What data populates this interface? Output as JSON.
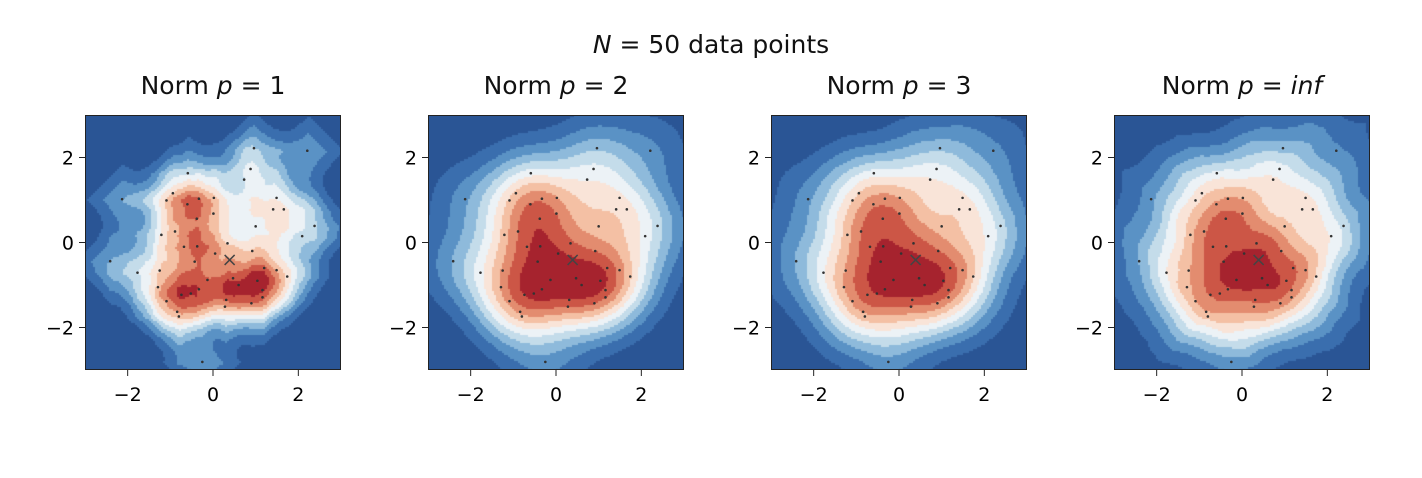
{
  "chart_data": {
    "type": "contour",
    "suptitle": {
      "var": "N",
      "eq": " = 50 data points"
    },
    "colormap": [
      "#2a5595",
      "#3a6eae",
      "#5a92c5",
      "#8ebadb",
      "#c4dcea",
      "#ecf2f6",
      "#f9e4d8",
      "#f4c0a4",
      "#e38c6f",
      "#cc5646",
      "#a6232e"
    ],
    "xlim": [
      -3,
      3
    ],
    "ylim": [
      -3,
      3
    ],
    "xticks": [
      -2,
      0,
      2
    ],
    "yticks": [
      -2,
      0,
      2
    ],
    "xtick_labels": [
      "−2",
      "0",
      "2"
    ],
    "ytick_labels": [
      "2",
      "0",
      "−2"
    ],
    "center_marker": [
      0.39,
      -0.41
    ],
    "points": [
      [
        0.96,
        2.22
      ],
      [
        2.21,
        2.16
      ],
      [
        0.88,
        1.73
      ],
      [
        -0.59,
        1.63
      ],
      [
        0.73,
        1.48
      ],
      [
        -2.13,
        1.02
      ],
      [
        -0.94,
        1.16
      ],
      [
        -1.09,
        0.99
      ],
      [
        -0.33,
        1.03
      ],
      [
        0.02,
        1.05
      ],
      [
        1.49,
        1.05
      ],
      [
        1.41,
        0.78
      ],
      [
        1.66,
        0.78
      ],
      [
        0.01,
        0.68
      ],
      [
        -0.38,
        0.56
      ],
      [
        1.0,
        0.38
      ],
      [
        2.38,
        0.39
      ],
      [
        -1.21,
        0.18
      ],
      [
        -0.89,
        0.26
      ],
      [
        2.09,
        0.15
      ],
      [
        -0.68,
        -0.1
      ],
      [
        -0.37,
        -0.09
      ],
      [
        0.05,
        -0.26
      ],
      [
        0.34,
        -0.02
      ],
      [
        0.92,
        -0.2
      ],
      [
        -2.41,
        -0.44
      ],
      [
        -0.43,
        -0.45
      ],
      [
        -1.77,
        -0.71
      ],
      [
        -1.25,
        -0.66
      ],
      [
        1.49,
        -0.65
      ],
      [
        1.74,
        -0.8
      ],
      [
        -0.13,
        -0.88
      ],
      [
        0.47,
        -0.84
      ],
      [
        1.04,
        -0.9
      ],
      [
        -1.29,
        -1.05
      ],
      [
        -0.33,
        -1.1
      ],
      [
        -0.74,
        -1.23
      ],
      [
        1.16,
        -1.12
      ],
      [
        1.16,
        -1.29
      ],
      [
        -1.09,
        -1.38
      ],
      [
        0.31,
        -1.35
      ],
      [
        0.9,
        -1.43
      ],
      [
        0.28,
        -1.51
      ],
      [
        -0.84,
        -1.63
      ],
      [
        -0.8,
        -1.74
      ],
      [
        -0.25,
        -2.81
      ],
      [
        -0.52,
        -1.2
      ],
      [
        0.6,
        -1.0
      ],
      [
        -0.6,
        0.9
      ],
      [
        1.2,
        -0.6
      ]
    ],
    "panels": [
      {
        "title": "Norm ",
        "p_label": "p",
        "eq": " = ",
        "p_value": "1",
        "p": 1
      },
      {
        "title": "Norm ",
        "p_label": "p",
        "eq": " = ",
        "p_value": "2",
        "p": 2
      },
      {
        "title": "Norm ",
        "p_label": "p",
        "eq": " = ",
        "p_value": "3",
        "p": 3
      },
      {
        "title": "Norm ",
        "p_label": "p",
        "eq": " = ",
        "p_value": "inf",
        "p": "inf"
      }
    ]
  }
}
